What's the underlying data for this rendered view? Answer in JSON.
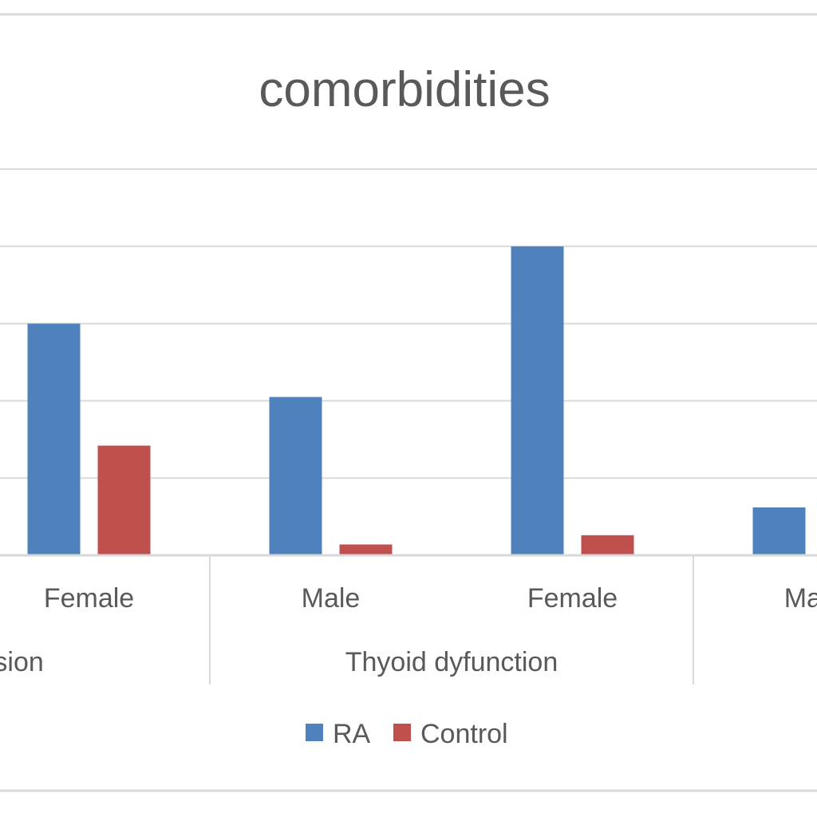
{
  "chart_data": {
    "type": "bar",
    "title": "comorbidities",
    "groups": [
      "...nsion",
      "Thyoid dyfunction",
      ""
    ],
    "categories": [
      "Female",
      "Male",
      "Female",
      "Ma..."
    ],
    "category_groups": [
      0,
      1,
      1,
      2
    ],
    "series": [
      {
        "name": "RA",
        "color": "#4F81BD",
        "values": [
          3.0,
          2.05,
          4.0,
          0.62
        ]
      },
      {
        "name": "Control",
        "color": "#C0504D",
        "values": [
          1.42,
          0.14,
          0.26,
          null
        ]
      }
    ],
    "ylim": [
      0,
      5
    ],
    "grid": true,
    "legend": "bottom"
  }
}
